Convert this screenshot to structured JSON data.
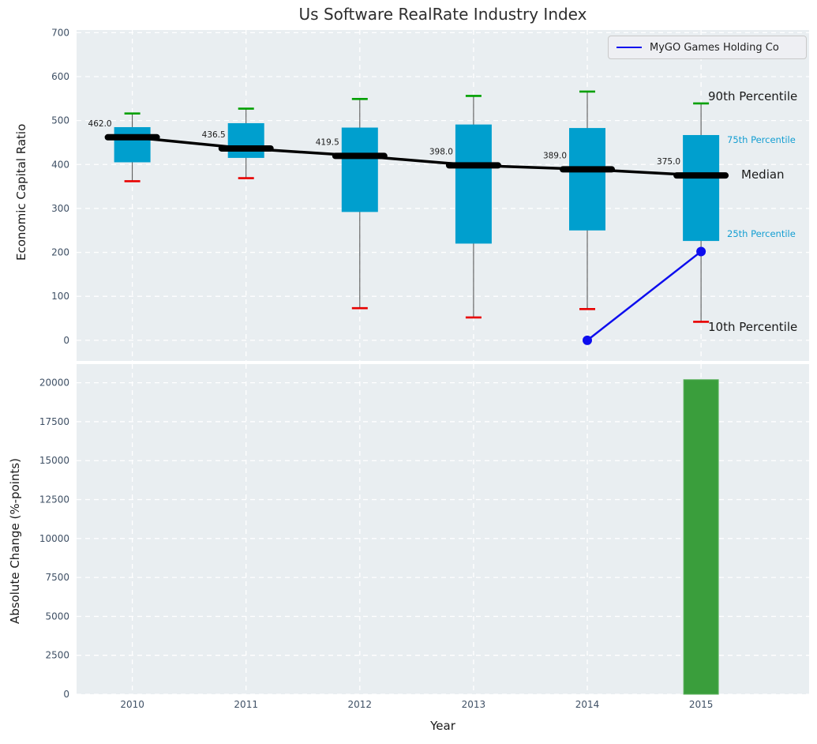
{
  "title": "Us Software RealRate Industry Index",
  "legend": {
    "label": "MyGO Games Holding Co"
  },
  "annotations": {
    "p90": "90th Percentile",
    "p75": "75th Percentile",
    "median": "Median",
    "p25": "25th Percentile",
    "p10": "10th Percentile"
  },
  "colors": {
    "box_fill": "#009fce",
    "cap_high": "#00a000",
    "cap_low": "#e80000",
    "whisker": "#4d4d4d",
    "median_line": "#000000",
    "series_line": "#0d0dee",
    "bar_fill": "#3a9e3c",
    "bar_edge": "#5cb25e",
    "plot_bg": "#e9eef1",
    "grid": "#ffffff",
    "tick_label": "#3f5065",
    "value_label": "#1a1a1a"
  },
  "chart_data": [
    {
      "type": "boxplot",
      "title": "Us Software RealRate Industry Index",
      "ylabel": "Economic Capital Ratio",
      "yticks": [
        0,
        100,
        200,
        300,
        400,
        500,
        600,
        700
      ],
      "ylim": [
        -47,
        706
      ],
      "categories": [
        2010,
        2011,
        2012,
        2013,
        2014,
        2015
      ],
      "series": [
        {
          "name": "90th Percentile",
          "values": [
            516,
            527,
            549,
            556,
            566,
            539
          ]
        },
        {
          "name": "75th Percentile",
          "values": [
            485,
            494,
            484,
            491,
            483,
            467
          ]
        },
        {
          "name": "Median",
          "values": [
            462.0,
            436.5,
            419.5,
            398.0,
            389.0,
            375.0
          ]
        },
        {
          "name": "25th Percentile",
          "values": [
            405,
            415,
            292,
            220,
            250,
            226
          ]
        },
        {
          "name": "10th Percentile",
          "values": [
            362,
            369,
            73,
            52,
            71,
            42
          ]
        }
      ],
      "median_labels": [
        "462.0",
        "436.5",
        "419.5",
        "398.0",
        "389.0",
        "375.0"
      ],
      "overlay_line": {
        "name": "MyGO Games Holding Co",
        "x": [
          2014,
          2015
        ],
        "values": [
          0,
          202
        ]
      },
      "legend_position": "upper right",
      "grid": true
    },
    {
      "type": "bar",
      "ylabel": "Absolute Change (%-points)",
      "xlabel": "Year",
      "yticks": [
        0,
        2500,
        5000,
        7500,
        10000,
        12500,
        15000,
        17500,
        20000
      ],
      "ylim": [
        0,
        21200
      ],
      "categories": [
        2010,
        2011,
        2012,
        2013,
        2014,
        2015
      ],
      "values": [
        null,
        null,
        null,
        null,
        null,
        20200
      ],
      "grid": true
    }
  ]
}
